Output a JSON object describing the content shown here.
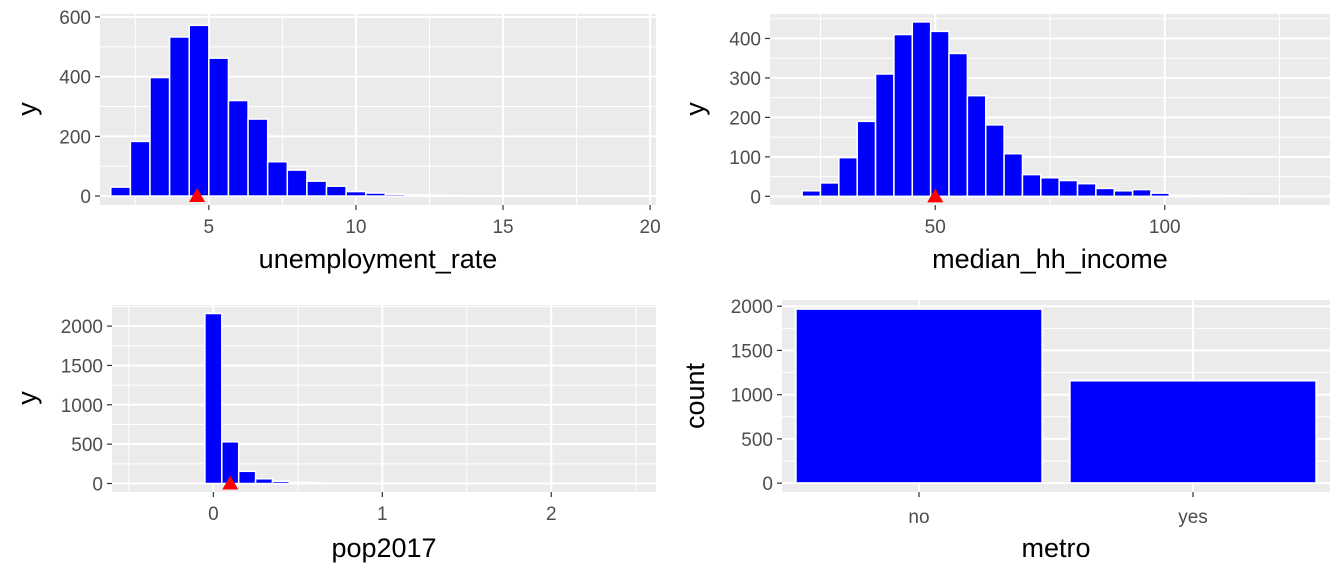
{
  "chart_data": [
    {
      "type": "bar",
      "xlabel": "unemployment_rate",
      "ylabel": "y",
      "xlim": [
        1.3,
        20.2
      ],
      "ylim": [
        -30,
        610
      ],
      "x_ticks": [
        5,
        10,
        15,
        20
      ],
      "y_ticks": [
        0,
        200,
        400,
        600
      ],
      "bin_width": 0.667,
      "bin_centers": [
        2.0,
        2.667,
        3.333,
        4.0,
        4.667,
        5.333,
        6.0,
        6.667,
        7.333,
        8.0,
        8.667,
        9.333,
        10.0,
        10.667,
        11.333,
        12.0,
        12.667,
        13.333,
        14.0,
        14.667,
        15.333,
        16.0,
        16.667,
        17.333,
        18.0,
        18.667,
        19.333
      ],
      "counts": [
        30,
        183,
        397,
        533,
        572,
        462,
        320,
        258,
        115,
        87,
        50,
        33,
        15,
        10,
        6,
        4,
        3,
        2,
        1,
        1,
        1,
        1,
        1,
        1,
        0,
        1,
        0
      ],
      "mean_marker": 4.6,
      "colors": {
        "bar": "#0000ff",
        "marker": "#ff0000",
        "panel": "#ebebeb"
      }
    },
    {
      "type": "bar",
      "xlabel": "median_hh_income",
      "ylabel": "y",
      "xlim": [
        14,
        136
      ],
      "ylim": [
        -22,
        462
      ],
      "x_ticks": [
        50,
        100
      ],
      "y_ticks": [
        0,
        100,
        200,
        300,
        400
      ],
      "bin_width": 4,
      "bin_centers": [
        23,
        27,
        31,
        35,
        39,
        43,
        47,
        51,
        55,
        59,
        63,
        67,
        71,
        75,
        79,
        83,
        87,
        91,
        95,
        99,
        103,
        107,
        111,
        115,
        119,
        123,
        127
      ],
      "counts": [
        14,
        34,
        98,
        190,
        310,
        410,
        442,
        418,
        362,
        255,
        181,
        108,
        55,
        47,
        40,
        32,
        20,
        14,
        17,
        8,
        3,
        2,
        3,
        2,
        1,
        1,
        0
      ],
      "mean_marker": 50,
      "colors": {
        "bar": "#0000ff",
        "marker": "#ff0000",
        "panel": "#ebebeb"
      }
    },
    {
      "type": "bar",
      "xlabel": "pop2017",
      "ylabel": "y",
      "xlim": [
        -0.6,
        2.62
      ],
      "ylim": [
        -108,
        2268
      ],
      "x_ticks": [
        0,
        1,
        2
      ],
      "y_ticks": [
        0,
        500,
        1000,
        1500,
        2000
      ],
      "bin_width": 0.1,
      "bin_centers": [
        0.0,
        0.1,
        0.2,
        0.3,
        0.4,
        0.5,
        0.6,
        0.7,
        0.8,
        0.9,
        1.0,
        1.1,
        1.2,
        1.3,
        1.4,
        1.5
      ],
      "counts": [
        2160,
        530,
        155,
        60,
        28,
        15,
        10,
        8,
        5,
        4,
        3,
        2,
        2,
        1,
        1,
        1
      ],
      "mean_marker": 0.1,
      "colors": {
        "bar": "#0000ff",
        "marker": "#ff0000",
        "panel": "#ebebeb"
      }
    },
    {
      "type": "bar",
      "xlabel": "metro",
      "ylabel": "count",
      "ylim": [
        -100,
        2070
      ],
      "y_ticks": [
        0,
        500,
        1000,
        1500,
        2000
      ],
      "categories": [
        "no",
        "yes"
      ],
      "values": [
        1970,
        1160
      ],
      "colors": {
        "bar": "#0000ff",
        "panel": "#ebebeb"
      }
    }
  ]
}
